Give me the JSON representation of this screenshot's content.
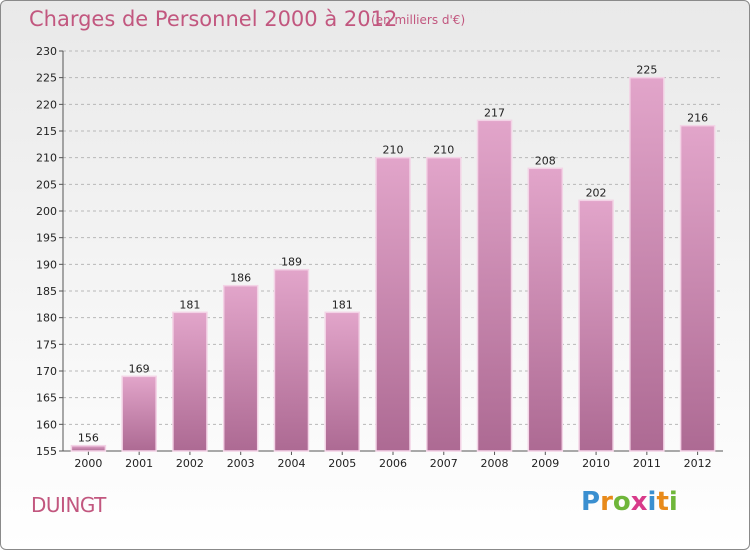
{
  "header": {
    "title": "Charges de Personnel 2000 à 2012",
    "unit": "(en milliers d'€)"
  },
  "footer": {
    "commune": "DUINGT",
    "logo_letters": [
      "P",
      "r",
      "o",
      "x",
      "i",
      "t",
      "i"
    ],
    "logo_colors": [
      "#3a8fd0",
      "#e88a1a",
      "#6fb63a",
      "#d83a8a",
      "#3a8fd0",
      "#e88a1a",
      "#6fb63a"
    ]
  },
  "colors": {
    "bar_top": "#e2a5ca",
    "bar_bottom": "#ad6a93",
    "bar_edge": "#f3d3e6",
    "grid": "#b8b8b8",
    "axis": "#555555"
  },
  "chart_data": {
    "type": "bar",
    "categories": [
      "2000",
      "2001",
      "2002",
      "2003",
      "2004",
      "2005",
      "2006",
      "2007",
      "2008",
      "2009",
      "2010",
      "2011",
      "2012"
    ],
    "values": [
      156,
      169,
      181,
      186,
      189,
      181,
      210,
      210,
      217,
      208,
      202,
      225,
      216
    ],
    "title": "Charges de Personnel 2000 à 2012",
    "xlabel": "",
    "ylabel": "",
    "ylim": [
      155,
      230
    ],
    "yticks": [
      155,
      160,
      165,
      170,
      175,
      180,
      185,
      190,
      195,
      200,
      205,
      210,
      215,
      220,
      225,
      230
    ],
    "grid": true,
    "legend": "none"
  }
}
